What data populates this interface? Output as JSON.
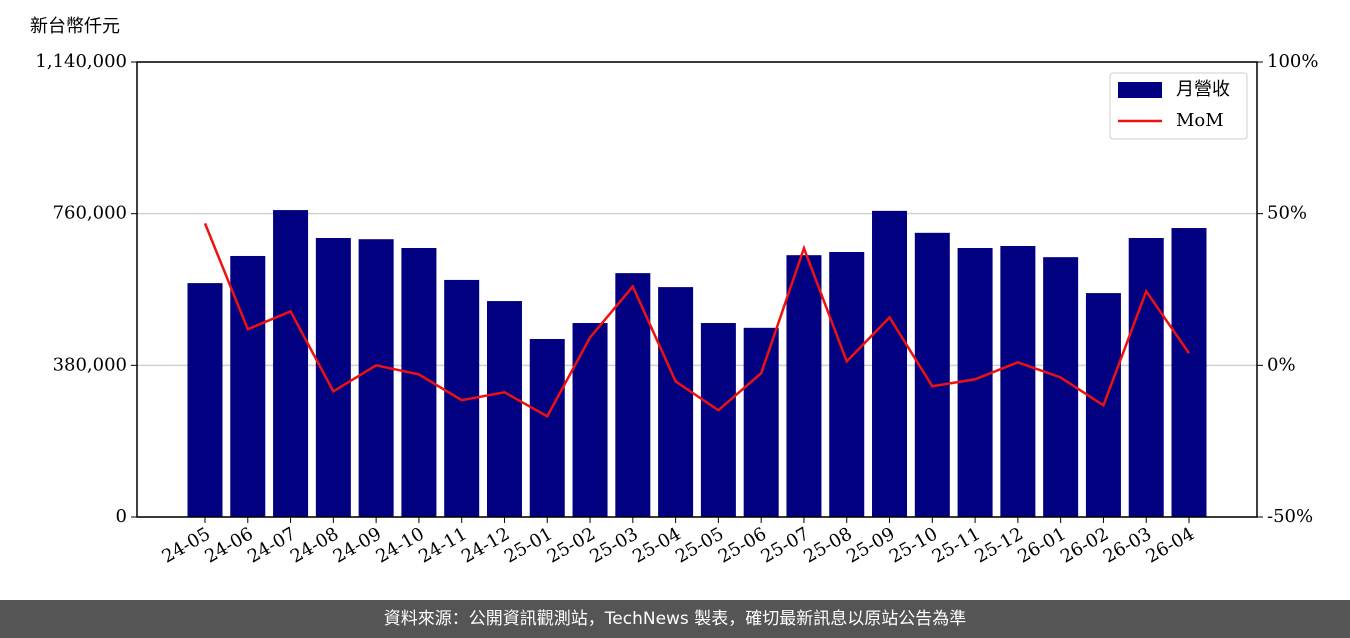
{
  "chart_data": {
    "type": "bar-line",
    "ylabel": "新台幣仟元",
    "categories": [
      "24-05",
      "24-06",
      "24-07",
      "24-08",
      "24-09",
      "24-10",
      "24-11",
      "24-12",
      "25-01",
      "25-02",
      "25-03",
      "25-04",
      "25-05",
      "25-06",
      "25-07",
      "25-08",
      "25-09",
      "25-10",
      "25-11",
      "25-12",
      "26-01",
      "26-02",
      "26-03",
      "26-04"
    ],
    "series": [
      {
        "name": "月營收",
        "type": "bar",
        "color": "#000080",
        "axis": "y",
        "values": [
          586000,
          654000,
          769000,
          699000,
          696000,
          674000,
          594000,
          541000,
          446000,
          486000,
          611000,
          576000,
          486000,
          474000,
          656000,
          664000,
          767000,
          712000,
          674000,
          679000,
          651000,
          561000,
          699000,
          724000
        ]
      },
      {
        "name": "MoM",
        "type": "line",
        "color": "#ee1111",
        "axis": "y2",
        "values": [
          46.8,
          11.9,
          17.8,
          -8.6,
          0,
          -3,
          -11.5,
          -8.9,
          -16.8,
          9.2,
          26,
          -5.3,
          -14.8,
          -2.6,
          38.6,
          1.3,
          15.8,
          -6.9,
          -4.6,
          1,
          -4,
          -13.2,
          24.4,
          4
        ]
      }
    ],
    "ylim": [
      0,
      1140000
    ],
    "yticks": [
      0,
      {
        "value": 380000,
        "label": "380,000"
      },
      {
        "value": 760000,
        "label": "760,000"
      },
      {
        "value": 1140000,
        "label": "1,140,000"
      }
    ],
    "y2lim": [
      -50,
      100
    ],
    "y2ticks": [
      {
        "value": -50,
        "label": "-50%"
      },
      {
        "value": 0,
        "label": "0%"
      },
      {
        "value": 50,
        "label": "50%"
      },
      {
        "value": 100,
        "label": "100%"
      }
    ],
    "grid": true,
    "legend": "upper right"
  },
  "footer": "資料來源：公開資訊觀測站，TechNews 製表，確切最新訊息以原站公告為準"
}
